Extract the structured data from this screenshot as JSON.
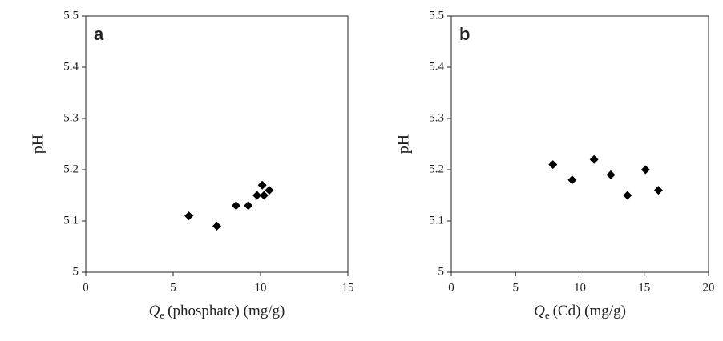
{
  "chart_data": [
    {
      "type": "scatter",
      "panel_label": "a",
      "ylabel": "pH",
      "xlabel": [
        "Q",
        "e",
        "(phosphate) (mg/g)"
      ],
      "x": [
        5.9,
        7.5,
        8.6,
        9.3,
        9.8,
        10.1,
        10.2,
        10.5
      ],
      "values": [
        5.11,
        5.09,
        5.13,
        5.13,
        5.15,
        5.17,
        5.15,
        5.16
      ],
      "color": "#000000",
      "xlim": [
        0,
        15
      ],
      "xticks": [
        0,
        5,
        10,
        15
      ],
      "ylim": [
        5,
        5.5
      ],
      "yticks": [
        5,
        5.1,
        5.2,
        5.3,
        5.4,
        5.5
      ]
    },
    {
      "type": "scatter",
      "panel_label": "b",
      "ylabel": "pH",
      "xlabel": [
        "Q",
        "e",
        "(Cd) (mg/g)"
      ],
      "x": [
        7.9,
        9.4,
        11.1,
        12.4,
        13.7,
        15.1,
        16.1
      ],
      "values": [
        5.21,
        5.18,
        5.22,
        5.19,
        5.15,
        5.2,
        5.16
      ],
      "color": "#000000",
      "xlim": [
        0,
        20
      ],
      "xticks": [
        0,
        5,
        10,
        15,
        20
      ],
      "ylim": [
        5,
        5.5
      ],
      "yticks": [
        5,
        5.1,
        5.2,
        5.3,
        5.4,
        5.5
      ]
    }
  ]
}
